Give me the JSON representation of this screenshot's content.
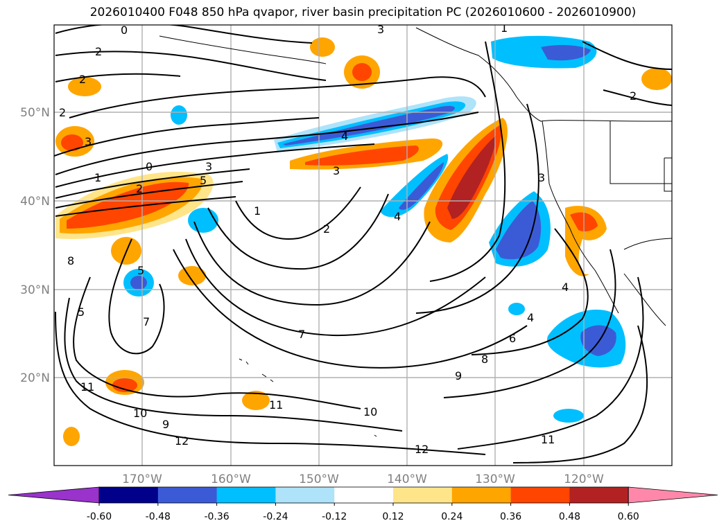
{
  "title": "2026010400 F048 850 hPa qvapor, river basin precipitation PC (2026010600 - 2026010900)",
  "lat_labels": [
    "50°N",
    "40°N",
    "30°N",
    "20°N"
  ],
  "lon_labels": [
    "170°W",
    "160°W",
    "150°W",
    "140°W",
    "130°W",
    "120°W"
  ],
  "contour_labels": [
    "0",
    "2",
    "2",
    "2",
    "3",
    "1",
    "0",
    "2",
    "3",
    "5",
    "4",
    "3",
    "2",
    "1",
    "4",
    "3",
    "1",
    "2",
    "3",
    "4",
    "4",
    "6",
    "7",
    "8",
    "9",
    "10",
    "11",
    "11",
    "12",
    "12",
    "9",
    "10",
    "11",
    "5",
    "7",
    "5",
    "8"
  ],
  "colorbar": {
    "tick_labels": [
      "-0.60",
      "-0.48",
      "-0.36",
      "-0.24",
      "-0.12",
      "0.12",
      "0.24",
      "0.36",
      "0.48",
      "0.60"
    ],
    "colors": [
      "#9933cc",
      "#00008b",
      "#3b5bd6",
      "#00bfff",
      "#aee3fa",
      "#ffffff",
      "#ffe58a",
      "#ffa500",
      "#ff4500",
      "#b22222",
      "#ff88aa"
    ]
  }
}
